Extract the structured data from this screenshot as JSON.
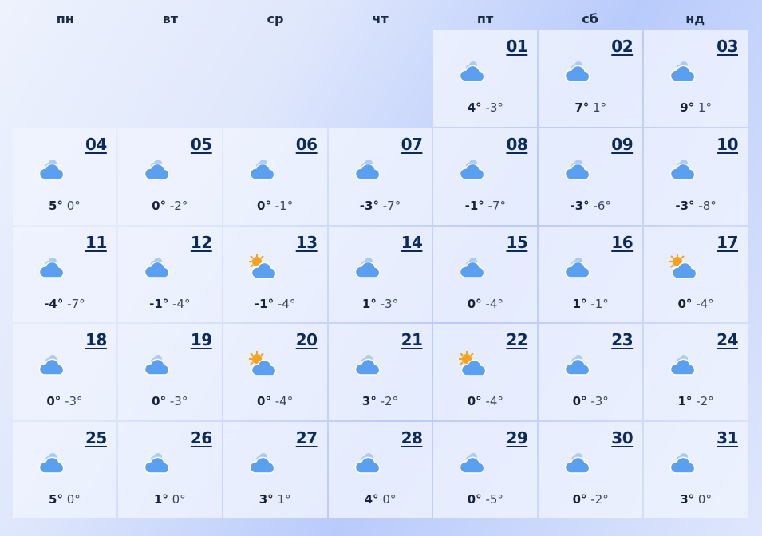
{
  "weekdays": [
    "пн",
    "вт",
    "ср",
    "чт",
    "пт",
    "сб",
    "нд"
  ],
  "leading_empty": 4,
  "colors": {
    "day_number": "#0d2a5c",
    "cloud": "#5a9ff0",
    "sun": "#f6a21a"
  },
  "days": [
    {
      "day": "01",
      "icon": "cloudy",
      "hi": "4°",
      "lo": "-3°"
    },
    {
      "day": "02",
      "icon": "cloudy",
      "hi": "7°",
      "lo": "1°"
    },
    {
      "day": "03",
      "icon": "cloudy",
      "hi": "9°",
      "lo": "1°"
    },
    {
      "day": "04",
      "icon": "cloudy",
      "hi": "5°",
      "lo": "0°"
    },
    {
      "day": "05",
      "icon": "cloudy",
      "hi": "0°",
      "lo": "-2°"
    },
    {
      "day": "06",
      "icon": "cloudy",
      "hi": "0°",
      "lo": "-1°"
    },
    {
      "day": "07",
      "icon": "cloudy",
      "hi": "-3°",
      "lo": "-7°"
    },
    {
      "day": "08",
      "icon": "cloudy",
      "hi": "-1°",
      "lo": "-7°"
    },
    {
      "day": "09",
      "icon": "cloudy",
      "hi": "-3°",
      "lo": "-6°"
    },
    {
      "day": "10",
      "icon": "cloudy",
      "hi": "-3°",
      "lo": "-8°"
    },
    {
      "day": "11",
      "icon": "cloudy",
      "hi": "-4°",
      "lo": "-7°"
    },
    {
      "day": "12",
      "icon": "cloudy",
      "hi": "-1°",
      "lo": "-4°"
    },
    {
      "day": "13",
      "icon": "partly-sunny",
      "hi": "-1°",
      "lo": "-4°"
    },
    {
      "day": "14",
      "icon": "cloudy",
      "hi": "1°",
      "lo": "-3°"
    },
    {
      "day": "15",
      "icon": "cloudy",
      "hi": "0°",
      "lo": "-4°"
    },
    {
      "day": "16",
      "icon": "cloudy",
      "hi": "1°",
      "lo": "-1°"
    },
    {
      "day": "17",
      "icon": "partly-sunny",
      "hi": "0°",
      "lo": "-4°"
    },
    {
      "day": "18",
      "icon": "cloudy",
      "hi": "0°",
      "lo": "-3°"
    },
    {
      "day": "19",
      "icon": "cloudy",
      "hi": "0°",
      "lo": "-3°"
    },
    {
      "day": "20",
      "icon": "partly-sunny",
      "hi": "0°",
      "lo": "-4°"
    },
    {
      "day": "21",
      "icon": "cloudy",
      "hi": "3°",
      "lo": "-2°"
    },
    {
      "day": "22",
      "icon": "partly-sunny",
      "hi": "0°",
      "lo": "-4°"
    },
    {
      "day": "23",
      "icon": "cloudy",
      "hi": "0°",
      "lo": "-3°"
    },
    {
      "day": "24",
      "icon": "cloudy",
      "hi": "1°",
      "lo": "-2°"
    },
    {
      "day": "25",
      "icon": "cloudy",
      "hi": "5°",
      "lo": "0°"
    },
    {
      "day": "26",
      "icon": "cloudy",
      "hi": "1°",
      "lo": "0°"
    },
    {
      "day": "27",
      "icon": "cloudy",
      "hi": "3°",
      "lo": "1°"
    },
    {
      "day": "28",
      "icon": "cloudy",
      "hi": "4°",
      "lo": "0°"
    },
    {
      "day": "29",
      "icon": "cloudy",
      "hi": "0°",
      "lo": "-5°"
    },
    {
      "day": "30",
      "icon": "cloudy",
      "hi": "0°",
      "lo": "-2°"
    },
    {
      "day": "31",
      "icon": "cloudy",
      "hi": "3°",
      "lo": "0°"
    }
  ]
}
